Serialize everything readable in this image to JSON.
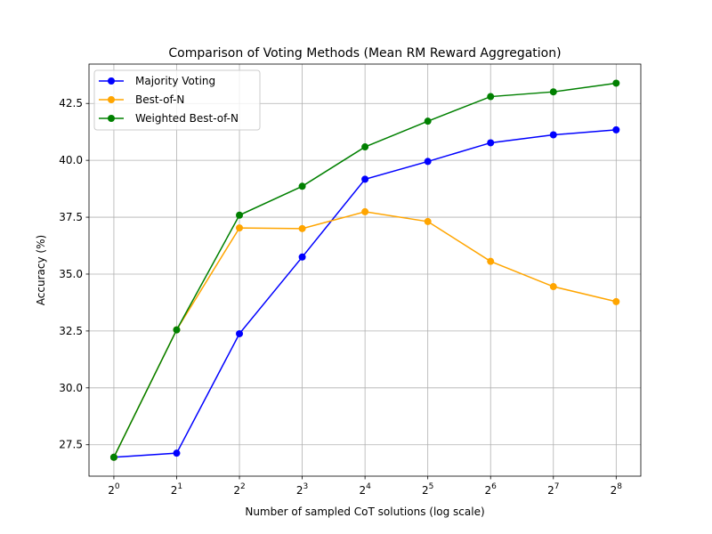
{
  "chart_data": {
    "type": "line",
    "title": "Comparison of Voting Methods (Mean RM Reward Aggregation)",
    "xlabel": "Number of sampled CoT solutions (log scale)",
    "ylabel": "Accuracy (%)",
    "x_scale": "log2",
    "x": [
      1,
      2,
      4,
      8,
      16,
      32,
      64,
      128,
      256
    ],
    "x_tick_labels": [
      {
        "base": "2",
        "exp": "0"
      },
      {
        "base": "2",
        "exp": "1"
      },
      {
        "base": "2",
        "exp": "2"
      },
      {
        "base": "2",
        "exp": "3"
      },
      {
        "base": "2",
        "exp": "4"
      },
      {
        "base": "2",
        "exp": "5"
      },
      {
        "base": "2",
        "exp": "6"
      },
      {
        "base": "2",
        "exp": "7"
      },
      {
        "base": "2",
        "exp": "8"
      }
    ],
    "y_ticks": [
      27.5,
      30.0,
      32.5,
      35.0,
      37.5,
      40.0,
      42.5
    ],
    "y_tick_labels": [
      "27.5",
      "30.0",
      "32.5",
      "35.0",
      "37.5",
      "40.0",
      "42.5"
    ],
    "xlim": [
      0.76,
      336
    ],
    "ylim": [
      26.12,
      44.23
    ],
    "grid": true,
    "legend_position": "upper-left",
    "series": [
      {
        "name": "Majority Voting",
        "color": "#0000ff",
        "values": [
          26.95,
          27.13,
          32.38,
          35.75,
          39.17,
          39.95,
          40.77,
          41.12,
          41.34
        ]
      },
      {
        "name": "Best-of-N",
        "color": "#ffa500",
        "values": [
          26.95,
          32.55,
          37.03,
          37.0,
          37.74,
          37.31,
          35.56,
          34.45,
          33.79
        ]
      },
      {
        "name": "Weighted Best-of-N",
        "color": "#008000",
        "values": [
          26.95,
          32.55,
          37.59,
          38.86,
          40.59,
          41.72,
          42.8,
          43.01,
          43.39
        ]
      }
    ]
  }
}
